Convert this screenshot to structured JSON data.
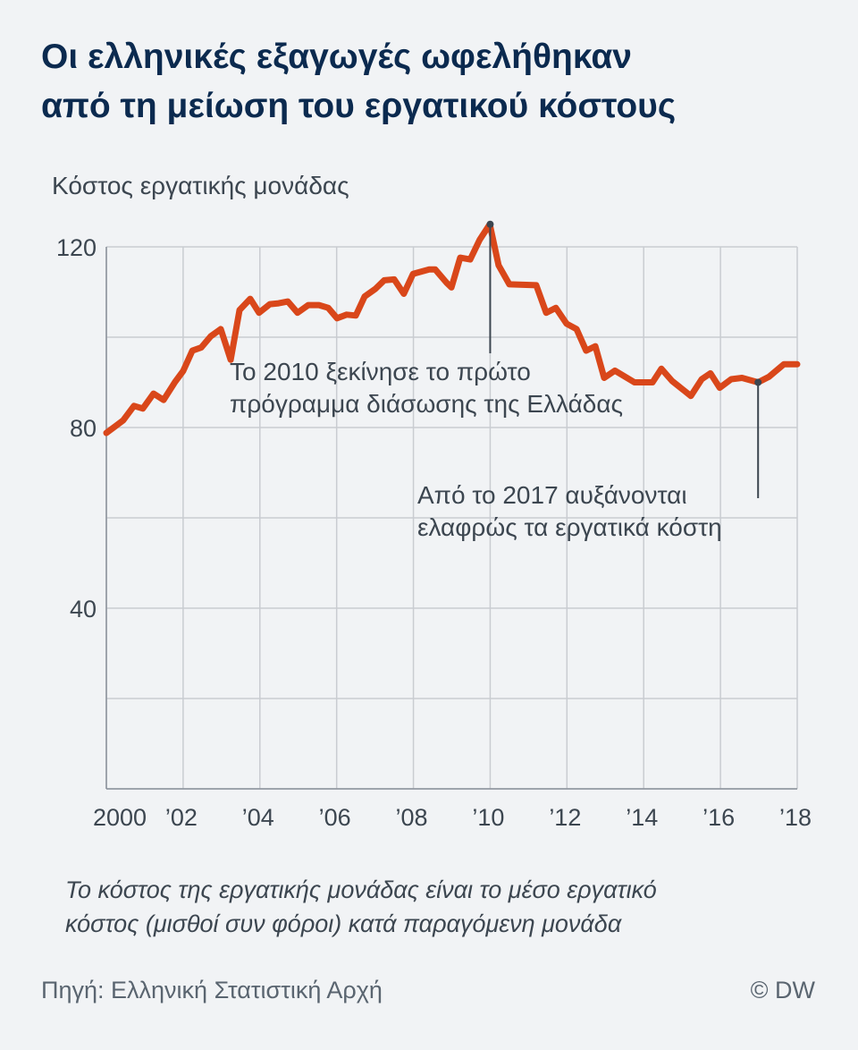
{
  "title_line1": "Οι ελληνικές εξαγωγές ωφελήθηκαν",
  "title_line2": "από τη μείωση του εργατικού κόστους",
  "footnote_line1": "Το κόστος της εργατικής μονάδας είναι το μέσο εργατικό",
  "footnote_line2": "κόστος (μισθοί συν φόροι) κατά παραγόμενη μονάδα",
  "source": "Πηγή: Ελληνική Στατιστική Αρχή",
  "credit": "© DW",
  "colors": {
    "line": "#d9471a",
    "title": "#0b2a4f",
    "grid": "#c9ccd1",
    "annotation": "#3c4650"
  },
  "chart_data": {
    "type": "line",
    "title": "",
    "ylabel": "Κόστος εργατικής μονάδας",
    "xlabel": "",
    "xlim": [
      2000,
      2018
    ],
    "ylim": [
      0,
      120
    ],
    "grid": true,
    "x_ticks": [
      2000,
      2002,
      2004,
      2006,
      2008,
      2010,
      2012,
      2014,
      2016,
      2018
    ],
    "x_tick_labels": [
      "2000",
      "’02",
      "’04",
      "’06",
      "’08",
      "’10",
      "’12",
      "’14",
      "’16",
      "’18"
    ],
    "y_ticks": [
      0,
      20,
      40,
      60,
      80,
      100,
      120
    ],
    "y_tick_labels": [
      "",
      "",
      "40",
      "",
      "80",
      "",
      "120"
    ],
    "series": [
      {
        "x": [
          2000.0,
          2000.44,
          2000.72,
          2000.95,
          2001.23,
          2001.49,
          2001.79,
          2002.0,
          2002.24,
          2002.47,
          2002.72,
          2002.98,
          2003.24,
          2003.47,
          2003.75,
          2003.98,
          2004.26,
          2004.49,
          2004.73,
          2004.98,
          2005.26,
          2005.54,
          2005.78,
          2006.01,
          2006.26,
          2006.5,
          2006.73,
          2007.01,
          2007.24,
          2007.5,
          2007.75,
          2007.99,
          2008.41,
          2008.57,
          2008.87,
          2008.99,
          2009.22,
          2009.48,
          2009.73,
          2009.99,
          2010.22,
          2010.5,
          2011.2,
          2011.46,
          2011.71,
          2011.99,
          2012.25,
          2012.5,
          2012.74,
          2012.97,
          2013.25,
          2013.76,
          2014.23,
          2014.46,
          2014.74,
          2015.23,
          2015.51,
          2015.74,
          2015.98,
          2016.28,
          2016.56,
          2016.98,
          2017.26,
          2017.65,
          2018.0
        ],
        "y": [
          78.8,
          81.6,
          84.8,
          84.2,
          87.5,
          86.1,
          90.1,
          92.5,
          97.0,
          97.7,
          100.2,
          101.8,
          95.0,
          106.0,
          108.5,
          105.4,
          107.3,
          107.5,
          107.9,
          105.4,
          107.1,
          107.1,
          106.5,
          104.2,
          105.0,
          104.8,
          109.0,
          110.7,
          112.6,
          112.8,
          109.6,
          114.0,
          115.0,
          115.0,
          112.0,
          111.0,
          117.6,
          117.2,
          121.6,
          125.0,
          115.9,
          111.7,
          111.5,
          105.4,
          106.5,
          103.0,
          101.8,
          97.0,
          98.0,
          91.0,
          92.6,
          90.0,
          90.0,
          93.0,
          90.3,
          87.0,
          90.7,
          92.0,
          88.8,
          90.7,
          91.0,
          90.0,
          91.2,
          94.0,
          94.0
        ]
      }
    ],
    "annotations": [
      {
        "x": 2010.0,
        "y": 125.0,
        "text_line1": "Το 2010 ξεκίνησε το πρώτο",
        "text_line2": "πρόγραμμα διάσωσης της Ελλάδας"
      },
      {
        "x": 2016.98,
        "y": 90.0,
        "text_line1": "Από το 2017 αυξάνονται",
        "text_line2": "ελαφρώς τα εργατικά κόστη"
      }
    ]
  }
}
